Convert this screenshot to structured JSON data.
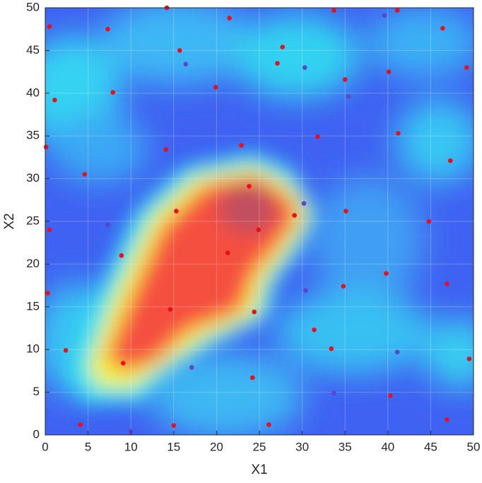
{
  "chart_data": {
    "type": "scatter",
    "xlabel": "X1",
    "ylabel": "X2",
    "xlim": [
      0,
      50
    ],
    "ylim": [
      0,
      50
    ],
    "xticks": [
      0,
      5,
      10,
      15,
      20,
      25,
      30,
      35,
      40,
      45,
      50
    ],
    "yticks": [
      0,
      5,
      10,
      15,
      20,
      25,
      30,
      35,
      40,
      45,
      50
    ],
    "grid": true,
    "series": [
      {
        "color": "#e8101a",
        "x": [
          14.2,
          21.5,
          33.7,
          41.1,
          0.5,
          7.3,
          46.4,
          27.7,
          15.7,
          27.1,
          49.2,
          40.1,
          35.0,
          19.9,
          7.9,
          1.1,
          31.8,
          41.2,
          0.1,
          14.1,
          22.9,
          47.3,
          4.6,
          23.8,
          15.3,
          35.1,
          29.1,
          0.5,
          24.9,
          44.8,
          21.3,
          8.9,
          39.8,
          34.8,
          46.9,
          0.3,
          14.6,
          24.4,
          31.4,
          33.4,
          2.4,
          9.1,
          49.5,
          24.2,
          40.3,
          4.1,
          15.0,
          26.1,
          46.9
        ],
        "values": [
          50.0,
          48.8,
          49.7,
          49.7,
          47.8,
          47.5,
          47.6,
          45.4,
          45.0,
          43.5,
          43.0,
          42.5,
          41.6,
          40.7,
          40.1,
          39.2,
          34.9,
          35.3,
          33.7,
          33.4,
          33.9,
          32.1,
          30.5,
          29.1,
          26.2,
          26.2,
          25.7,
          24.0,
          24.0,
          25.0,
          21.3,
          21.0,
          18.9,
          17.4,
          17.7,
          16.6,
          14.7,
          14.4,
          12.3,
          10.1,
          9.9,
          8.4,
          8.9,
          6.7,
          4.6,
          1.2,
          1.1,
          1.2,
          1.8
        ]
      },
      {
        "color": "#5b46c8",
        "x": [
          39.6,
          16.4,
          30.3,
          35.4,
          7.3,
          30.2,
          30.4,
          17.1,
          41.1,
          33.7,
          10.0
        ],
        "values": [
          49.1,
          43.4,
          43.0,
          39.6,
          24.6,
          27.1,
          16.9,
          7.9,
          9.7,
          4.9,
          0.4
        ]
      }
    ]
  }
}
